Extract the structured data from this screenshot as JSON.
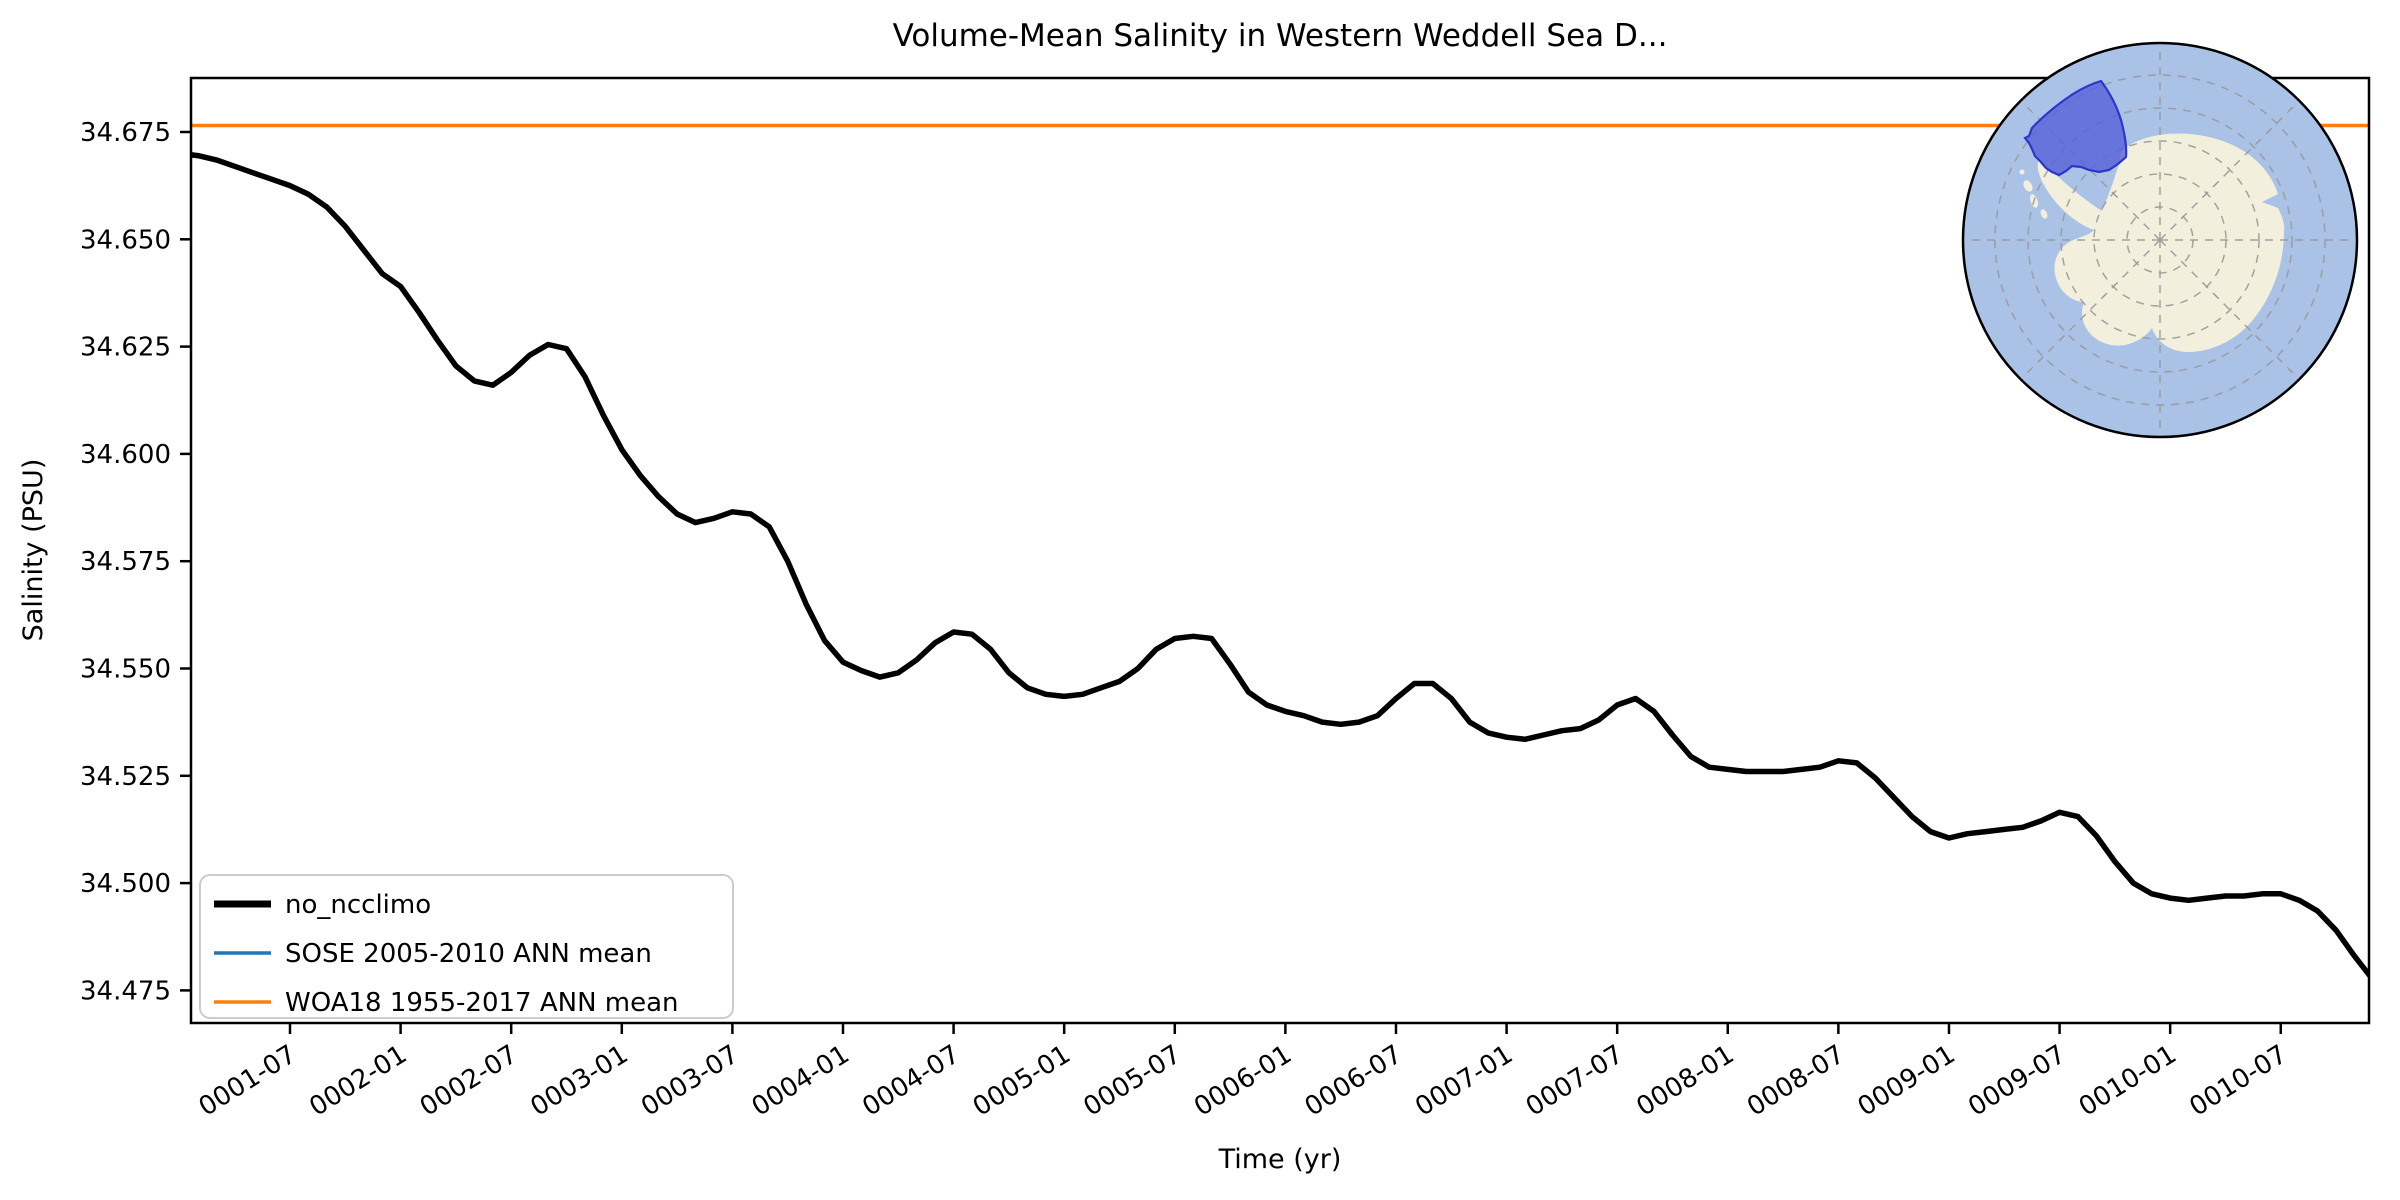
{
  "figure": {
    "background": "#ffffff",
    "title": "Volume-Mean Salinity in Western Weddell Sea D..."
  },
  "chart_data": {
    "type": "line",
    "title": "Volume-Mean Salinity in Western Weddell Sea D...",
    "xlabel": "Time (yr)",
    "ylabel": "Salinity (PSU)",
    "grid": false,
    "legend_position": "lower left",
    "x_tick_labels": [
      "0001-07",
      "0002-01",
      "0002-07",
      "0003-01",
      "0003-07",
      "0004-01",
      "0004-07",
      "0005-01",
      "0005-07",
      "0006-01",
      "0006-07",
      "0007-01",
      "0007-07",
      "0008-01",
      "0008-07",
      "0009-01",
      "0009-07",
      "0010-01",
      "0010-07"
    ],
    "x_tick_month_indices": [
      6,
      12,
      18,
      24,
      30,
      36,
      42,
      48,
      54,
      60,
      66,
      72,
      78,
      84,
      90,
      96,
      102,
      108,
      114
    ],
    "y_ticks": [
      34.675,
      34.65,
      34.625,
      34.6,
      34.575,
      34.55,
      34.525,
      34.5,
      34.475
    ],
    "ylim": [
      34.467,
      34.687
    ],
    "x_months_total": 120,
    "x_start": "0001-01",
    "x_end": "0010-12",
    "series": [
      {
        "name": "no_ncclimo",
        "color": "#000000",
        "linewidth": 5.5,
        "values": [
          34.67,
          34.6695,
          34.6685,
          34.667,
          34.6655,
          34.664,
          34.6625,
          34.6605,
          34.6575,
          34.653,
          34.6475,
          34.642,
          34.639,
          34.633,
          34.6265,
          34.6205,
          34.617,
          34.616,
          34.619,
          34.623,
          34.6255,
          34.6245,
          34.618,
          34.609,
          34.601,
          34.595,
          34.59,
          34.586,
          34.584,
          34.585,
          34.5865,
          34.586,
          34.583,
          34.575,
          34.565,
          34.5565,
          34.5515,
          34.5495,
          34.548,
          34.549,
          34.552,
          34.556,
          34.5585,
          34.558,
          34.5545,
          34.549,
          34.5455,
          34.544,
          34.5435,
          34.544,
          34.5455,
          34.547,
          34.55,
          34.5545,
          34.557,
          34.5575,
          34.557,
          34.551,
          34.5445,
          34.5415,
          34.54,
          34.539,
          34.5375,
          34.537,
          34.5375,
          34.539,
          34.543,
          34.5465,
          34.5465,
          34.543,
          34.5375,
          34.535,
          34.534,
          34.5335,
          34.5345,
          34.5355,
          34.536,
          34.538,
          34.5415,
          34.543,
          34.54,
          34.5345,
          34.5295,
          34.527,
          34.5265,
          34.526,
          34.526,
          34.526,
          34.5265,
          34.527,
          34.5285,
          34.528,
          34.5245,
          34.52,
          34.5155,
          34.512,
          34.5105,
          34.5115,
          34.512,
          34.5125,
          34.513,
          34.5145,
          34.5165,
          34.5155,
          34.511,
          34.505,
          34.5,
          34.4975,
          34.4965,
          34.496,
          34.4965,
          34.497,
          34.497,
          34.4975,
          34.4975,
          34.496,
          34.4935,
          34.489,
          34.483,
          34.4775
        ]
      }
    ],
    "ref_lines": [
      {
        "name": "SOSE 2005-2010 ANN mean",
        "color": "#1f77b4",
        "linewidth": 3.5,
        "value": null,
        "visible_in_view": false
      },
      {
        "name": "WOA18 1955-2017 ANN mean",
        "color": "#ff7f0e",
        "linewidth": 3.5,
        "value": 34.6765,
        "visible_in_view": true
      }
    ],
    "legend": {
      "entries": [
        {
          "label": "no_ncclimo",
          "color": "#000000",
          "linewidth": 7
        },
        {
          "label": "SOSE 2005-2010 ANN mean",
          "color": "#1f77b4",
          "linewidth": 3.5
        },
        {
          "label": "WOA18 1955-2017 ANN mean",
          "color": "#ff7f0e",
          "linewidth": 3.5
        }
      ]
    }
  },
  "inset_map": {
    "description": "south-polar-stereographic-antarctica-inset",
    "colors": {
      "ocean": "#a9c2e6",
      "land": "#f2f0dc",
      "region_fill": "#5560d8",
      "region_fill_opacity": 0.8,
      "region_border": "#2b36cf",
      "graticule": "#999999",
      "border": "#000000"
    }
  }
}
